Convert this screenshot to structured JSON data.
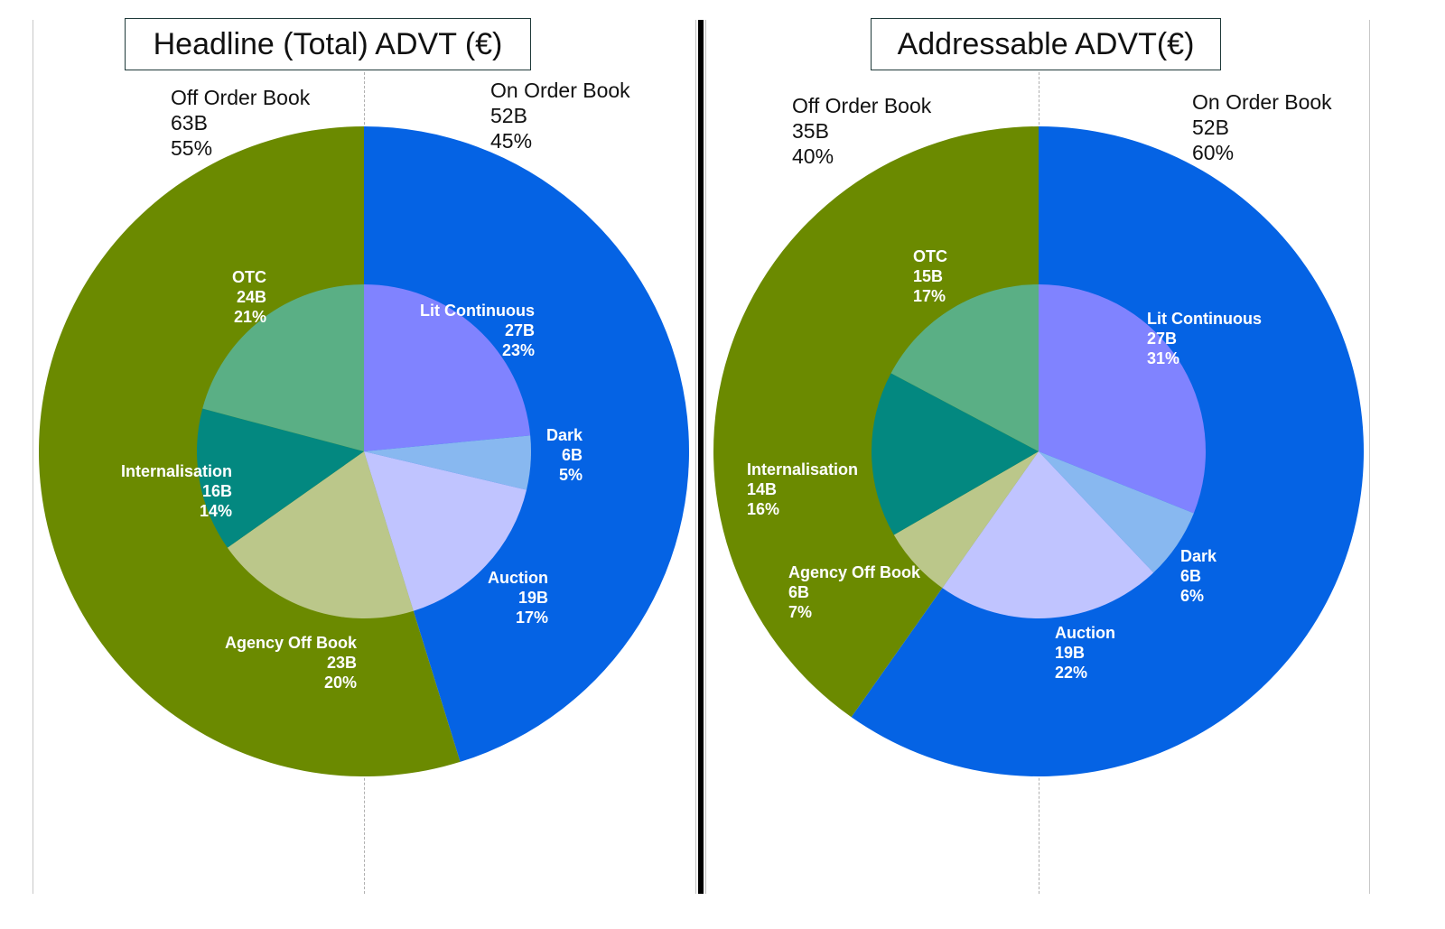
{
  "chart_data": [
    {
      "type": "pie",
      "subtype": "nested-donut",
      "title": "Headline (Total) ADVT (€)",
      "outer_ring": [
        {
          "label": "On Order Book",
          "value_text": "52B",
          "pct_text": "45%",
          "value": 52,
          "color": "#0563E4"
        },
        {
          "label": "Off Order Book",
          "value_text": "63B",
          "pct_text": "55%",
          "value": 63,
          "color": "#6B8A00"
        }
      ],
      "inner_pie": [
        {
          "label": "Lit Continuous",
          "value_text": "27B",
          "pct_text": "23%",
          "value": 27,
          "color": "#8083FF"
        },
        {
          "label": "Dark",
          "value_text": "6B",
          "pct_text": "5%",
          "value": 6,
          "color": "#88B8F0"
        },
        {
          "label": "Auction",
          "value_text": "19B",
          "pct_text": "17%",
          "value": 19,
          "color": "#C0C4FF"
        },
        {
          "label": "Agency Off Book",
          "value_text": "23B",
          "pct_text": "20%",
          "value": 23,
          "color": "#BBC78A"
        },
        {
          "label": "Internalisation",
          "value_text": "16B",
          "pct_text": "14%",
          "value": 16,
          "color": "#038880"
        },
        {
          "label": "OTC",
          "value_text": "24B",
          "pct_text": "21%",
          "value": 24,
          "color": "#5AAF85"
        }
      ]
    },
    {
      "type": "pie",
      "subtype": "nested-donut",
      "title": "Addressable ADVT(€)",
      "outer_ring": [
        {
          "label": "On Order Book",
          "value_text": "52B",
          "pct_text": "60%",
          "value": 52,
          "color": "#0563E4"
        },
        {
          "label": "Off Order Book",
          "value_text": "35B",
          "pct_text": "40%",
          "value": 35,
          "color": "#6B8A00"
        }
      ],
      "inner_pie": [
        {
          "label": "Lit Continuous",
          "value_text": "27B",
          "pct_text": "31%",
          "value": 27,
          "color": "#8083FF"
        },
        {
          "label": "Dark",
          "value_text": "6B",
          "pct_text": "6%",
          "value": 6,
          "color": "#88B8F0"
        },
        {
          "label": "Auction",
          "value_text": "19B",
          "pct_text": "22%",
          "value": 19,
          "color": "#C0C4FF"
        },
        {
          "label": "Agency Off Book",
          "value_text": "6B",
          "pct_text": "7%",
          "value": 6,
          "color": "#BBC78A"
        },
        {
          "label": "Internalisation",
          "value_text": "14B",
          "pct_text": "16%",
          "value": 14,
          "color": "#038880"
        },
        {
          "label": "OTC",
          "value_text": "15B",
          "pct_text": "17%",
          "value": 15,
          "color": "#5AAF85"
        }
      ]
    }
  ]
}
